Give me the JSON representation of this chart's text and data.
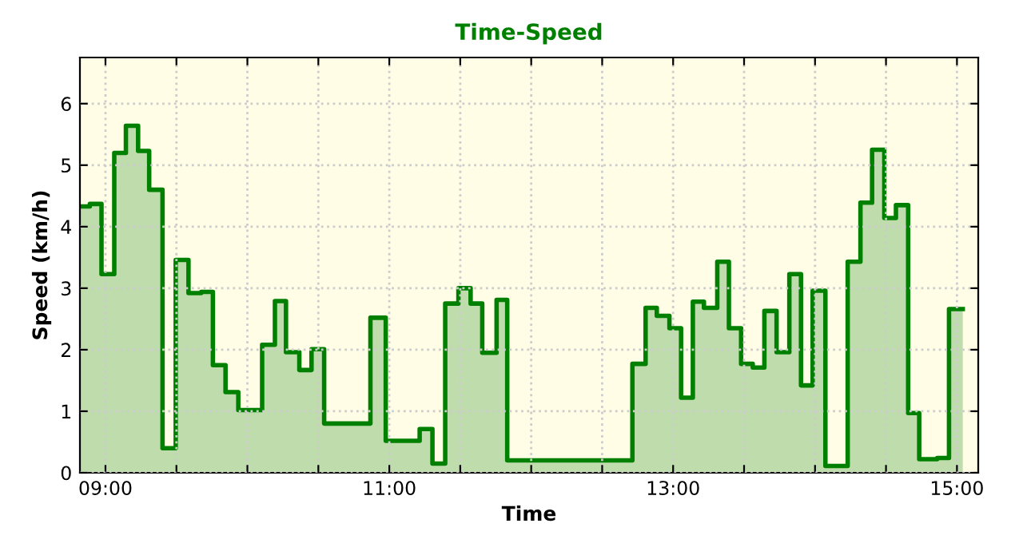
{
  "chart_data": {
    "type": "area",
    "title": "Time-Speed",
    "xlabel": "Time",
    "ylabel": "Speed (km/h)",
    "x": [
      8.823,
      8.89,
      8.89,
      8.972,
      8.972,
      9.062,
      9.062,
      9.144,
      9.144,
      9.23,
      9.23,
      9.308,
      9.308,
      9.402,
      9.402,
      9.495,
      9.495,
      9.585,
      9.585,
      9.675,
      9.675,
      9.757,
      9.757,
      9.846,
      9.846,
      9.936,
      9.936,
      10.104,
      10.104,
      10.194,
      10.194,
      10.272,
      10.272,
      10.366,
      10.366,
      10.452,
      10.452,
      10.541,
      10.541,
      10.867,
      10.867,
      10.975,
      10.975,
      11.214,
      11.214,
      11.304,
      11.304,
      11.394,
      11.394,
      11.487,
      11.487,
      11.573,
      11.573,
      11.655,
      11.655,
      11.756,
      11.756,
      11.831,
      11.831,
      12.713,
      12.713,
      12.806,
      12.806,
      12.885,
      12.885,
      12.974,
      12.974,
      13.056,
      13.056,
      13.139,
      13.139,
      13.217,
      13.217,
      13.311,
      13.311,
      13.393,
      13.393,
      13.479,
      13.479,
      13.561,
      13.561,
      13.643,
      13.643,
      13.729,
      13.729,
      13.819,
      13.819,
      13.901,
      13.901,
      13.983,
      13.983,
      14.073,
      14.073,
      14.23,
      14.23,
      14.32,
      14.32,
      14.402,
      14.402,
      14.488,
      14.488,
      14.57,
      14.57,
      14.656,
      14.656,
      14.734,
      14.734,
      14.861,
      14.861,
      14.944,
      14.944,
      15.041
    ],
    "series": [
      {
        "color": "#008000",
        "values": [
          4.33,
          4.33,
          4.37,
          4.37,
          3.23,
          3.23,
          5.2,
          5.2,
          5.64,
          5.64,
          5.23,
          5.23,
          4.6,
          4.6,
          0.4,
          0.4,
          3.46,
          3.46,
          2.92,
          2.92,
          2.94,
          2.94,
          1.75,
          1.75,
          1.31,
          1.31,
          1.02,
          1.02,
          2.08,
          2.08,
          2.79,
          2.79,
          1.96,
          1.96,
          1.67,
          1.67,
          2.01,
          2.01,
          0.8,
          0.8,
          2.52,
          2.52,
          0.52,
          0.52,
          0.71,
          0.71,
          0.15,
          0.15,
          2.75,
          2.75,
          3.0,
          3.0,
          2.75,
          2.75,
          1.95,
          1.95,
          2.81,
          2.81,
          0.2,
          0.2,
          1.77,
          1.77,
          2.68,
          2.68,
          2.55,
          2.55,
          2.35,
          2.35,
          1.22,
          1.22,
          2.78,
          2.78,
          2.68,
          2.68,
          3.43,
          3.43,
          2.35,
          2.35,
          1.77,
          1.77,
          1.71,
          1.71,
          2.63,
          2.63,
          1.96,
          1.96,
          3.23,
          3.23,
          1.42,
          1.42,
          2.96,
          2.96,
          0.11,
          0.11,
          3.43,
          3.43,
          4.39,
          4.39,
          5.25,
          5.25,
          4.14,
          4.14,
          4.35,
          4.35,
          0.97,
          0.97,
          0.22,
          0.22,
          0.24,
          0.24,
          2.66,
          2.66
        ]
      }
    ],
    "xlim": [
      8.82,
      15.15
    ],
    "ylim": [
      0,
      6.75
    ],
    "xticks": [
      {
        "value": 9,
        "label": "09:00"
      },
      {
        "value": 9.5,
        "label": null
      },
      {
        "value": 10,
        "label": null
      },
      {
        "value": 10.5,
        "label": null
      },
      {
        "value": 11,
        "label": "11:00"
      },
      {
        "value": 11.5,
        "label": null
      },
      {
        "value": 12,
        "label": null
      },
      {
        "value": 12.5,
        "label": null
      },
      {
        "value": 13,
        "label": "13:00"
      },
      {
        "value": 13.5,
        "label": null
      },
      {
        "value": 14,
        "label": null
      },
      {
        "value": 14.5,
        "label": null
      },
      {
        "value": 15,
        "label": "15:00"
      }
    ],
    "yticks": [
      0,
      1,
      2,
      3,
      4,
      5,
      6
    ],
    "grid": true
  }
}
